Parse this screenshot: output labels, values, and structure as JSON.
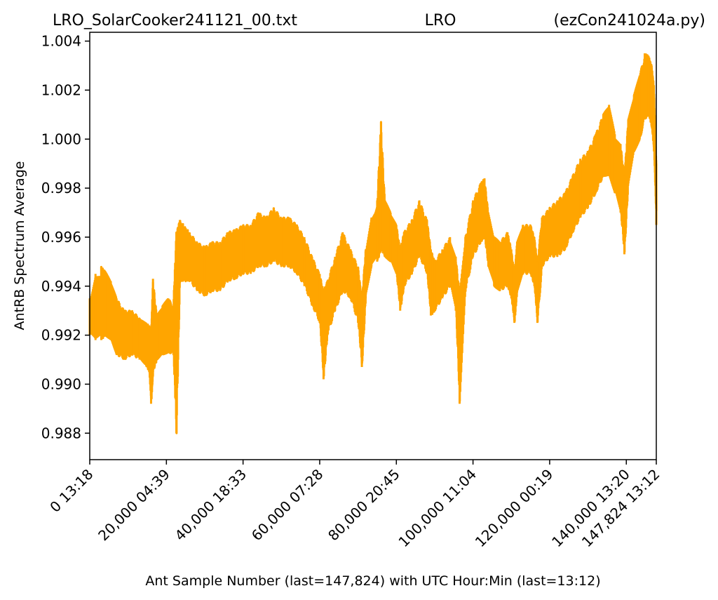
{
  "chart_data": {
    "type": "line",
    "title_parts": [
      "LRO_SolarCooker241121_00.txt",
      "LRO",
      "(ezCon241024a.py)"
    ],
    "xlabel": "Ant Sample Number (last=147,824) with UTC Hour:Min (last=13:12)",
    "ylabel": "AntRB Spectrum Average",
    "xlim": [
      0,
      147824
    ],
    "ylim": [
      0.98692,
      1.00436
    ],
    "x_ticks": [
      {
        "value": 0,
        "label": "0  13:18"
      },
      {
        "value": 20000,
        "label": "20,000  04:39"
      },
      {
        "value": 40000,
        "label": "40,000  18:33"
      },
      {
        "value": 60000,
        "label": "60,000  07:28"
      },
      {
        "value": 80000,
        "label": "80,000  20:45"
      },
      {
        "value": 100000,
        "label": "100,000  11:04"
      },
      {
        "value": 120000,
        "label": "120,000  00:19"
      },
      {
        "value": 140000,
        "label": "140,000  13:20"
      },
      {
        "value": 147824,
        "label": "147,824  13:12"
      }
    ],
    "y_ticks": [
      {
        "value": 0.988,
        "label": "0.988"
      },
      {
        "value": 0.99,
        "label": "0.990"
      },
      {
        "value": 0.992,
        "label": "0.992"
      },
      {
        "value": 0.994,
        "label": "0.994"
      },
      {
        "value": 0.996,
        "label": "0.996"
      },
      {
        "value": 0.998,
        "label": "0.998"
      },
      {
        "value": 1.0,
        "label": "1.000"
      },
      {
        "value": 1.002,
        "label": "1.002"
      },
      {
        "value": 1.004,
        "label": "1.004"
      }
    ],
    "series": [
      {
        "color": "#ffa500",
        "band_points": [
          [
            0,
            0.9925,
            0.9935,
            0.992
          ],
          [
            1500,
            0.9928,
            0.9945,
            0.9918
          ],
          [
            3000,
            0.993,
            0.9948,
            0.9918
          ],
          [
            4000,
            0.9932,
            0.9946,
            0.992
          ],
          [
            5500,
            0.9928,
            0.9942,
            0.9918
          ],
          [
            7000,
            0.9922,
            0.9935,
            0.9912
          ],
          [
            9000,
            0.992,
            0.993,
            0.991
          ],
          [
            11000,
            0.9922,
            0.993,
            0.9912
          ],
          [
            13000,
            0.992,
            0.9927,
            0.991
          ],
          [
            14500,
            0.9918,
            0.9925,
            0.9908
          ],
          [
            15500,
            0.9915,
            0.9924,
            0.9905
          ],
          [
            16000,
            0.9912,
            0.992,
            0.9892
          ],
          [
            16500,
            0.9914,
            0.9943,
            0.9905
          ],
          [
            17500,
            0.992,
            0.9928,
            0.991
          ],
          [
            19000,
            0.9922,
            0.9932,
            0.9912
          ],
          [
            20500,
            0.9923,
            0.9935,
            0.9913
          ],
          [
            21800,
            0.9922,
            0.9932,
            0.9912
          ],
          [
            22600,
            0.9935,
            0.9962,
            0.988
          ],
          [
            23500,
            0.9952,
            0.9967,
            0.9942
          ],
          [
            26000,
            0.9952,
            0.9962,
            0.9942
          ],
          [
            28000,
            0.9948,
            0.9958,
            0.9938
          ],
          [
            30000,
            0.9946,
            0.9956,
            0.9936
          ],
          [
            32000,
            0.9948,
            0.9958,
            0.9938
          ],
          [
            34000,
            0.9948,
            0.9958,
            0.9938
          ],
          [
            36000,
            0.9952,
            0.9962,
            0.9942
          ],
          [
            38000,
            0.9953,
            0.9963,
            0.9943
          ],
          [
            40000,
            0.9955,
            0.9965,
            0.9945
          ],
          [
            42000,
            0.9955,
            0.9965,
            0.9945
          ],
          [
            44000,
            0.9958,
            0.997,
            0.9948
          ],
          [
            46000,
            0.9958,
            0.9968,
            0.9948
          ],
          [
            48000,
            0.996,
            0.9972,
            0.995
          ],
          [
            50000,
            0.9958,
            0.9968,
            0.9948
          ],
          [
            52000,
            0.9958,
            0.9968,
            0.9948
          ],
          [
            54000,
            0.9955,
            0.9965,
            0.9945
          ],
          [
            56000,
            0.995,
            0.996,
            0.994
          ],
          [
            58000,
            0.9942,
            0.9952,
            0.9932
          ],
          [
            60000,
            0.9935,
            0.9945,
            0.9925
          ],
          [
            61000,
            0.9925,
            0.9938,
            0.9902
          ],
          [
            62000,
            0.9932,
            0.9942,
            0.992
          ],
          [
            64000,
            0.994,
            0.9952,
            0.993
          ],
          [
            66000,
            0.9948,
            0.9962,
            0.9938
          ],
          [
            68000,
            0.9945,
            0.9955,
            0.9935
          ],
          [
            70000,
            0.9938,
            0.9948,
            0.9925
          ],
          [
            71000,
            0.9925,
            0.9935,
            0.9907
          ],
          [
            72000,
            0.9945,
            0.9955,
            0.9935
          ],
          [
            73500,
            0.9958,
            0.9968,
            0.9948
          ],
          [
            75000,
            0.996,
            0.9975,
            0.995
          ],
          [
            76000,
            0.9965,
            1.0007,
            0.9955
          ],
          [
            77000,
            0.9962,
            0.9975,
            0.9952
          ],
          [
            78500,
            0.996,
            0.997,
            0.995
          ],
          [
            80000,
            0.9955,
            0.9965,
            0.9945
          ],
          [
            81000,
            0.9945,
            0.9955,
            0.993
          ],
          [
            82000,
            0.995,
            0.9962,
            0.994
          ],
          [
            84000,
            0.9955,
            0.9967,
            0.9945
          ],
          [
            86000,
            0.9962,
            0.9975,
            0.9952
          ],
          [
            88000,
            0.9955,
            0.9967,
            0.9945
          ],
          [
            89000,
            0.9945,
            0.9955,
            0.9928
          ],
          [
            90000,
            0.994,
            0.995,
            0.993
          ],
          [
            92000,
            0.9945,
            0.9955,
            0.9935
          ],
          [
            94000,
            0.995,
            0.996,
            0.994
          ],
          [
            95500,
            0.9942,
            0.9952,
            0.993
          ],
          [
            96500,
            0.9925,
            0.9937,
            0.9892
          ],
          [
            98000,
            0.9948,
            0.996,
            0.9938
          ],
          [
            100000,
            0.9962,
            0.9975,
            0.9952
          ],
          [
            102000,
            0.9968,
            0.9982,
            0.9958
          ],
          [
            103000,
            0.9972,
            0.9984,
            0.996
          ],
          [
            104000,
            0.996,
            0.997,
            0.9948
          ],
          [
            105500,
            0.995,
            0.996,
            0.994
          ],
          [
            107000,
            0.9948,
            0.9958,
            0.9938
          ],
          [
            109000,
            0.995,
            0.9962,
            0.994
          ],
          [
            110000,
            0.9945,
            0.9955,
            0.9935
          ],
          [
            110800,
            0.9935,
            0.9945,
            0.9925
          ],
          [
            111500,
            0.9948,
            0.9958,
            0.9938
          ],
          [
            113000,
            0.9955,
            0.9965,
            0.9945
          ],
          [
            115000,
            0.9955,
            0.9965,
            0.9945
          ],
          [
            116000,
            0.995,
            0.996,
            0.994
          ],
          [
            116800,
            0.994,
            0.995,
            0.9925
          ],
          [
            118000,
            0.9958,
            0.9968,
            0.9948
          ],
          [
            120000,
            0.9962,
            0.9972,
            0.9952
          ],
          [
            122000,
            0.9962,
            0.9975,
            0.9952
          ],
          [
            124000,
            0.9965,
            0.9978,
            0.9955
          ],
          [
            126000,
            0.9972,
            0.9985,
            0.9962
          ],
          [
            128000,
            0.9978,
            0.9992,
            0.9968
          ],
          [
            130000,
            0.9982,
            0.9995,
            0.9972
          ],
          [
            132000,
            0.9988,
            1.0002,
            0.9978
          ],
          [
            134000,
            0.9995,
            1.001,
            0.9985
          ],
          [
            135500,
            0.9995,
            1.0014,
            0.9985
          ],
          [
            137000,
            0.999,
            1.0002,
            0.9978
          ],
          [
            138500,
            0.9985,
            0.9998,
            0.997
          ],
          [
            139500,
            0.997,
            0.9985,
            0.9953
          ],
          [
            140500,
            0.9995,
            1.0008,
            0.9982
          ],
          [
            142000,
            1.0005,
            1.0018,
            0.9995
          ],
          [
            143500,
            1.0012,
            1.0026,
            1.0
          ],
          [
            144800,
            1.002,
            1.0035,
            1.0008
          ],
          [
            145800,
            1.0022,
            1.0034,
            1.001
          ],
          [
            146600,
            1.0018,
            1.003,
            1.0005
          ],
          [
            147200,
            1.001,
            1.0022,
            0.9995
          ],
          [
            147824,
            0.9975,
            0.999,
            0.9965
          ]
        ]
      }
    ]
  }
}
